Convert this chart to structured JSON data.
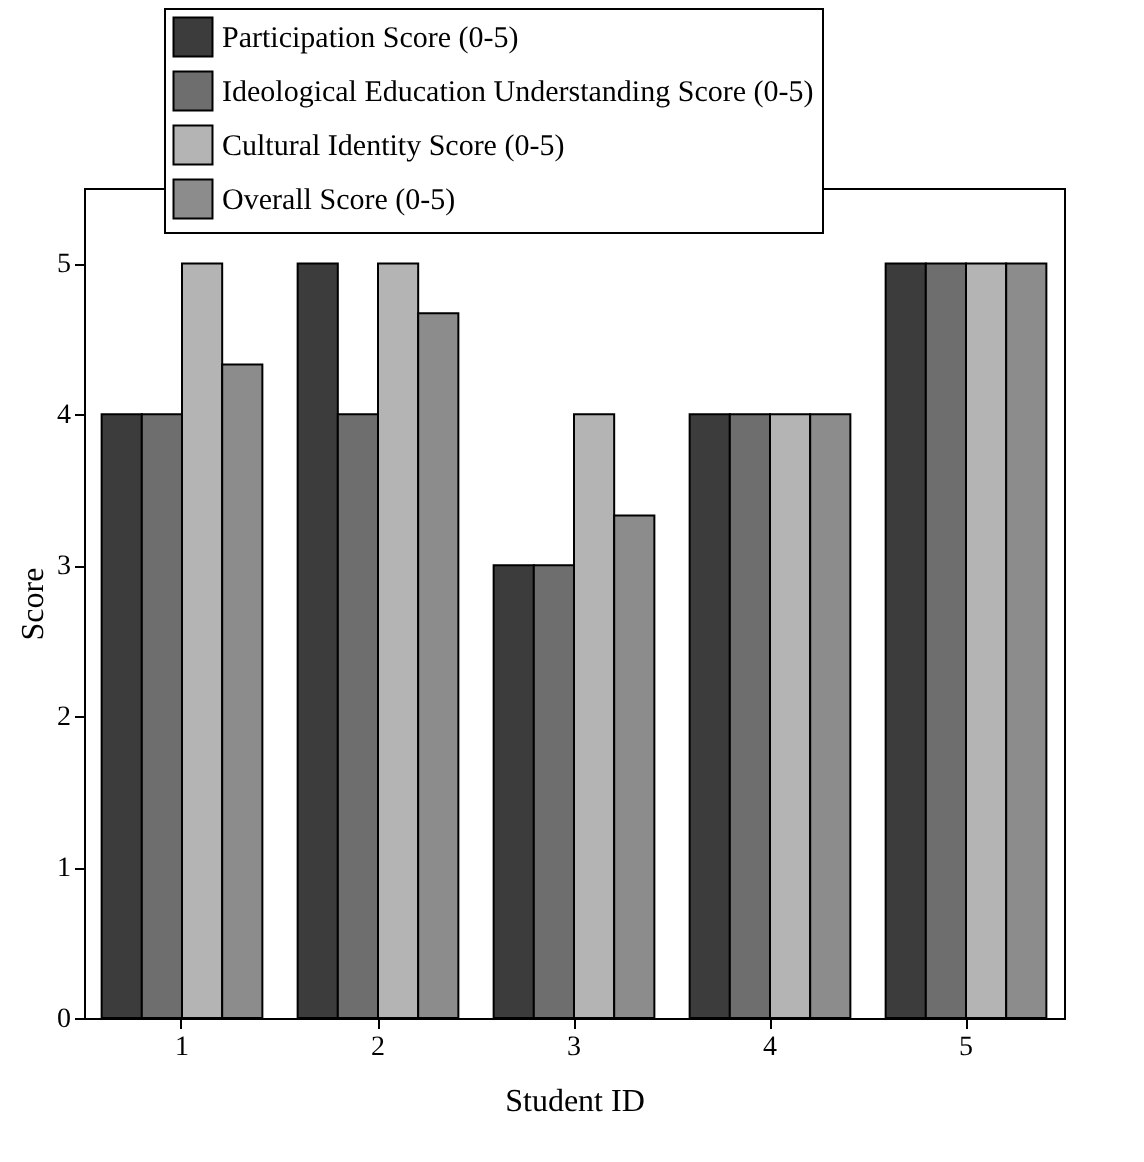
{
  "chart_data": {
    "type": "bar",
    "xlabel": "Student ID",
    "ylabel": "Score",
    "categories": [
      "1",
      "2",
      "3",
      "4",
      "5"
    ],
    "series": [
      {
        "name": "Participation Score (0-5)",
        "color": "#3c3c3c",
        "values": [
          4,
          5,
          3,
          4,
          5
        ]
      },
      {
        "name": "Ideological Education Understanding Score (0-5)",
        "color": "#6e6e6e",
        "values": [
          4,
          4,
          3,
          4,
          5
        ]
      },
      {
        "name": "Cultural Identity Score (0-5)",
        "color": "#b4b4b4",
        "values": [
          5,
          5,
          4,
          4,
          5
        ]
      },
      {
        "name": "Overall Score (0-5)",
        "color": "#8c8c8c",
        "values": [
          4.33,
          4.67,
          3.33,
          4,
          5
        ]
      }
    ],
    "ylim": [
      0,
      5.5
    ],
    "yticks": [
      0,
      1,
      2,
      3,
      4,
      5
    ],
    "grid": false,
    "legend": "top"
  }
}
